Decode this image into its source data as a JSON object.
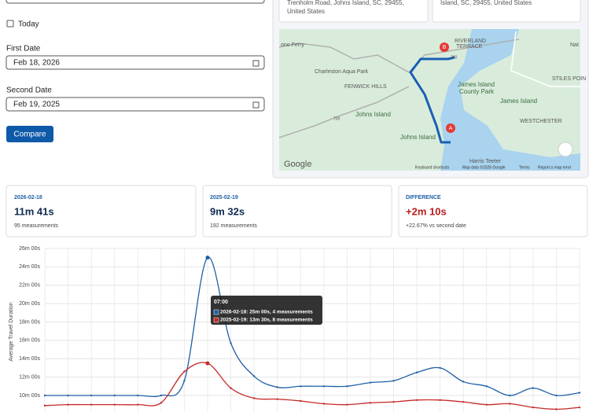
{
  "form": {
    "today_label": "Today",
    "first_date_label": "First Date",
    "first_date_value": "Feb 18, 2026",
    "second_date_label": "Second Date",
    "second_date_value": "Feb 19, 2025",
    "compare_button": "Compare"
  },
  "addresses": [
    [
      "Trenholm Road, Johns Island, SC, 29455,",
      "United States"
    ],
    [
      "Island, SC, 29455, United States"
    ]
  ],
  "map": {
    "labels": [
      "ono Ferry",
      "RIVERLAND",
      "TERRACE",
      "Charleston Aqua Park",
      "FENWICK HILLS",
      "James Island",
      "County Park",
      "James Island",
      "STILES POIN",
      "WESTCHESTER",
      "Johns Island",
      "Johns Island",
      "Harris Teeter",
      "Google",
      "Keyboard shortcuts",
      "Map data ©2026 Google",
      "Terms",
      "Report a map error",
      "700",
      "700",
      "Nat"
    ]
  },
  "summary": [
    {
      "label": "2026-02-18",
      "value": "11m 41s",
      "note": "95 measurements"
    },
    {
      "label": "2025-02-19",
      "value": "9m 32s",
      "note": "192 measurements"
    },
    {
      "label": "DIFFERENCE",
      "value": "+2m 10s",
      "note": "+22.67% vs second date"
    }
  ],
  "chart_data": {
    "type": "line",
    "y_label": "Average Travel Duration",
    "x": [
      0,
      1,
      2,
      3,
      4,
      5,
      6,
      7,
      8,
      9,
      10,
      11,
      12,
      13,
      14,
      15,
      16,
      17,
      18,
      19,
      20,
      21,
      22,
      23
    ],
    "xlim": [
      0,
      23
    ],
    "ylim": [
      8.2,
      26
    ],
    "yticks": [
      {
        "value": 10,
        "label": "10m 00s"
      },
      {
        "value": 12,
        "label": "12m 00s"
      },
      {
        "value": 14,
        "label": "14m 00s"
      },
      {
        "value": 16,
        "label": "16m 00s"
      },
      {
        "value": 18,
        "label": "18m 00s"
      },
      {
        "value": 20,
        "label": "20m 00s"
      },
      {
        "value": 22,
        "label": "22m 00s"
      },
      {
        "value": 24,
        "label": "24m 00s"
      },
      {
        "value": 26,
        "label": "26m 00s"
      }
    ],
    "grid": true,
    "series": [
      {
        "name": "2026-02-18",
        "color": "#1f5fa6",
        "values": [
          10,
          10,
          10,
          10,
          10,
          10,
          11.6,
          25,
          15.7,
          12.1,
          10.9,
          11,
          11,
          11,
          11.4,
          11.6,
          12.5,
          13,
          11.5,
          11,
          10,
          10.8,
          10,
          10.3
        ]
      },
      {
        "name": "2025-02-19",
        "color": "#c62828",
        "values": [
          8.9,
          9,
          9,
          9,
          9,
          9.2,
          12.6,
          13.5,
          10.8,
          9.7,
          9.6,
          9.4,
          9.1,
          9,
          9.2,
          9.3,
          9.5,
          9.5,
          9.3,
          9,
          9.1,
          8.7,
          8.5,
          8.7
        ]
      }
    ],
    "tooltip": {
      "title": "07:00",
      "lines": [
        "2026-02-18: 25m 00s, 4 measurements",
        "2025-02-19: 13m 30s, 8 measurements"
      ]
    }
  }
}
